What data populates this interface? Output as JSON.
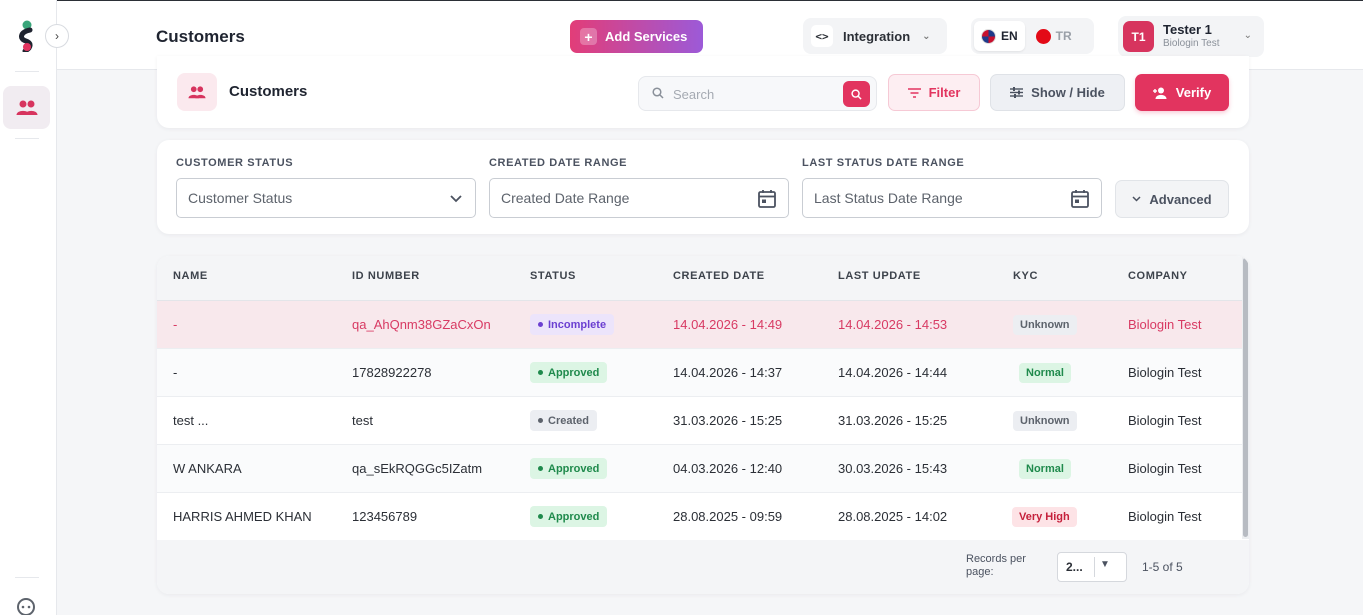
{
  "header": {
    "title": "Customers",
    "add_services": "Add Services",
    "integration": "Integration",
    "languages": [
      {
        "code": "EN",
        "active": true
      },
      {
        "code": "TR",
        "active": false
      }
    ],
    "user": {
      "initials": "T1",
      "name": "Tester 1",
      "org": "Biologin Test"
    }
  },
  "toolbar": {
    "title": "Customers",
    "search_placeholder": "Search",
    "filter": "Filter",
    "show_hide": "Show / Hide",
    "verify": "Verify"
  },
  "filters": {
    "customer_status": {
      "label": "CUSTOMER STATUS",
      "placeholder": "Customer Status"
    },
    "created_date": {
      "label": "CREATED DATE RANGE",
      "placeholder": "Created Date Range"
    },
    "last_status_date": {
      "label": "LAST STATUS DATE RANGE",
      "placeholder": "Last Status Date Range"
    },
    "advanced": "Advanced"
  },
  "table": {
    "columns": [
      "NAME",
      "ID NUMBER",
      "STATUS",
      "CREATED DATE",
      "LAST UPDATE",
      "KYC",
      "COMPANY"
    ],
    "rows": [
      {
        "name": "-",
        "id": "qa_AhQnm38GZaCxOn",
        "status": "Incomplete",
        "created": "14.04.2026 - 14:49",
        "updated": "14.04.2026 - 14:53",
        "kyc": "Unknown",
        "company": "Biologin Test"
      },
      {
        "name": "-",
        "id": "17828922278",
        "status": "Approved",
        "created": "14.04.2026 - 14:37",
        "updated": "14.04.2026 - 14:44",
        "kyc": "Normal",
        "company": "Biologin Test"
      },
      {
        "name": "test ...",
        "id": "test",
        "status": "Created",
        "created": "31.03.2026 - 15:25",
        "updated": "31.03.2026 - 15:25",
        "kyc": "Unknown",
        "company": "Biologin Test"
      },
      {
        "name": "W ANKARA",
        "id": "qa_sEkRQGGc5IZatm",
        "status": "Approved",
        "created": "04.03.2026 - 12:40",
        "updated": "30.03.2026 - 15:43",
        "kyc": "Normal",
        "company": "Biologin Test"
      },
      {
        "name": "HARRIS AHMED KHAN",
        "id": "123456789",
        "status": "Approved",
        "created": "28.08.2025 - 09:59",
        "updated": "28.08.2025 - 14:02",
        "kyc": "Very High",
        "company": "Biologin Test"
      }
    ],
    "records_per_page_label": "Records per page:",
    "records_per_page_value": "2...",
    "pagination": "1-5 of 5"
  },
  "colors": {
    "accent": "#e2345f",
    "approved_bg": "#dcf5e4",
    "approved_fg": "#1f8a4c",
    "incomplete_bg": "#ece4fb",
    "incomplete_fg": "#6b3fd1",
    "created_bg": "#eceef2",
    "created_fg": "#5d636c",
    "veryhigh_bg": "#fde3e6",
    "veryhigh_fg": "#c5203b"
  }
}
